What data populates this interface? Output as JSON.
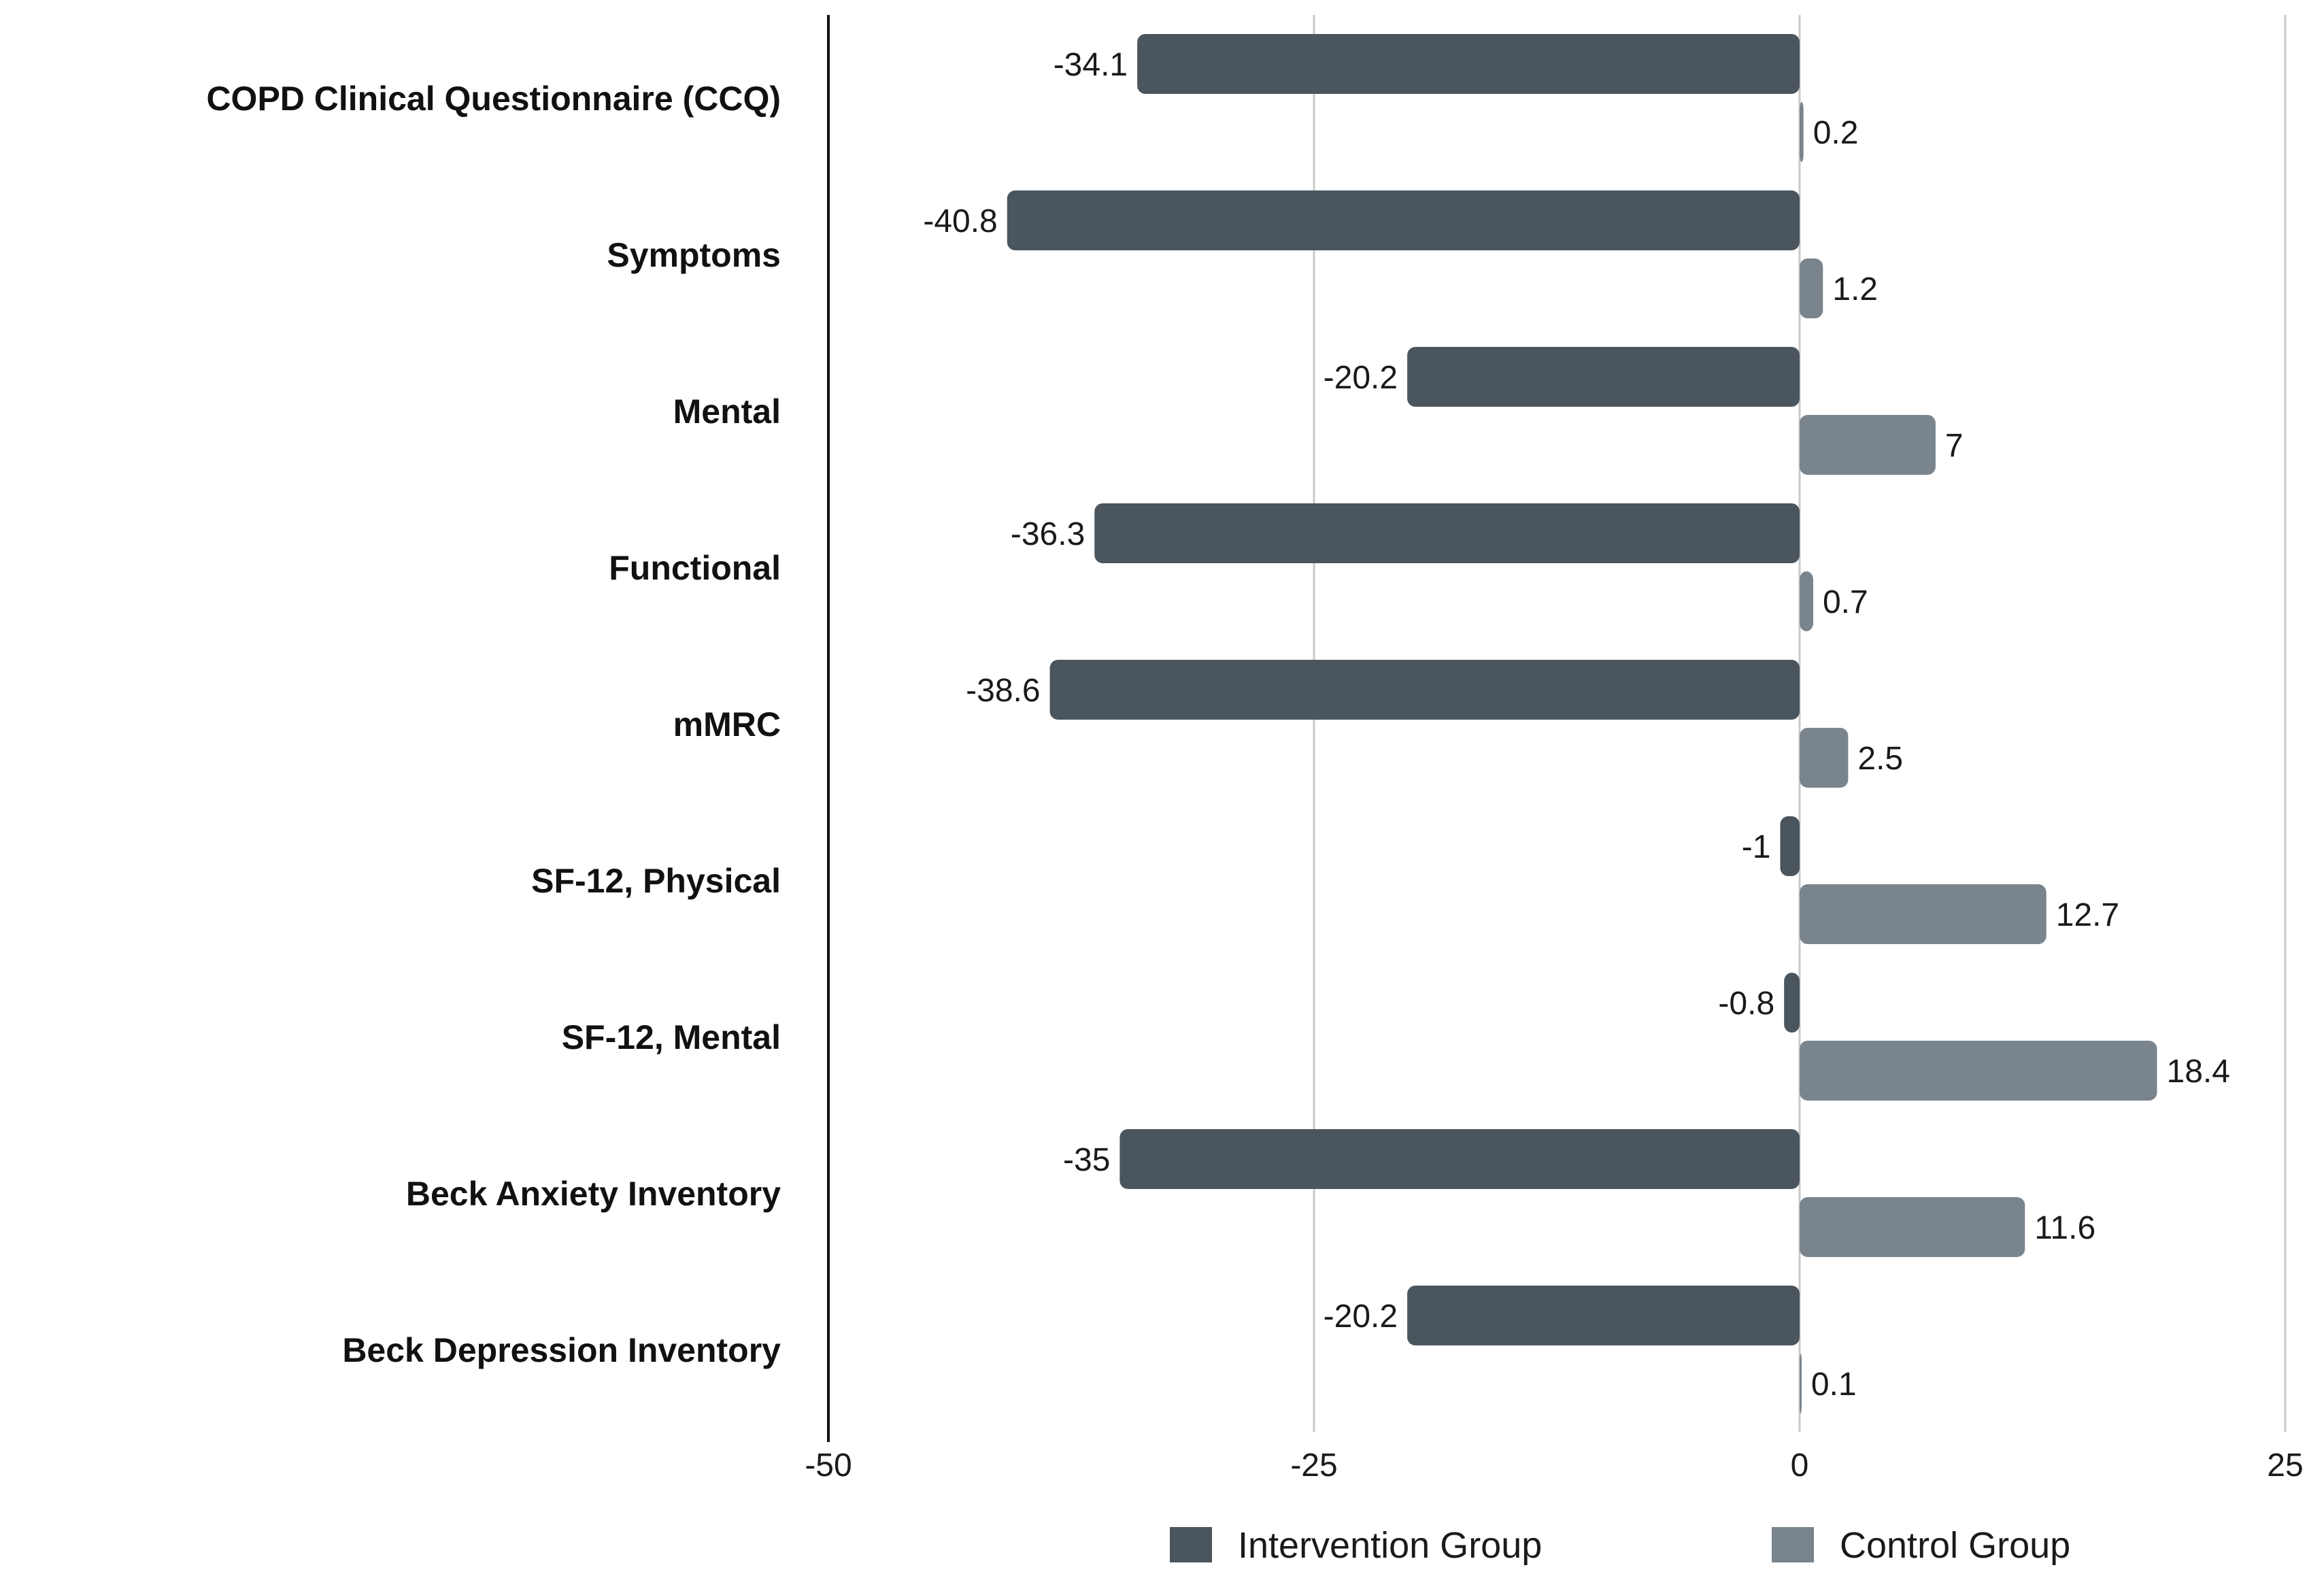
{
  "chart_data": {
    "type": "bar",
    "orientation": "horizontal",
    "title": "",
    "xlabel": "",
    "ylabel": "",
    "xlim": [
      -50,
      25
    ],
    "xticks": [
      -50,
      -25,
      0,
      25
    ],
    "xtick_labels": [
      "-50",
      "-25",
      "0",
      "25"
    ],
    "grid": true,
    "legend_position": "bottom",
    "categories": [
      "COPD Clinical Questionnaire (CCQ)",
      "Symptoms",
      "Mental",
      "Functional",
      "mMRC",
      "SF-12, Physical",
      "SF-12, Mental",
      "Beck Anxiety Inventory",
      "Beck Depression Inventory"
    ],
    "series": [
      {
        "name": "Intervention Group",
        "color": "#4b555d",
        "values": [
          -34.1,
          -40.8,
          -20.2,
          -36.3,
          -38.6,
          -1,
          -0.8,
          -35,
          -20.2
        ],
        "labels": [
          "-34.1",
          "-40.8",
          "-20.2",
          "-36.3",
          "-38.6",
          "-1",
          "-0.8",
          "-35",
          "-20.2"
        ]
      },
      {
        "name": "Control Group",
        "color": "#79848d",
        "values": [
          0.2,
          1.2,
          7,
          0.7,
          2.5,
          12.7,
          18.4,
          11.6,
          0.1
        ],
        "labels": [
          "0.2",
          "1.2",
          "7",
          "0.7",
          "2.5",
          "12.7",
          "18.4",
          "11.6",
          "0.1"
        ]
      }
    ]
  }
}
